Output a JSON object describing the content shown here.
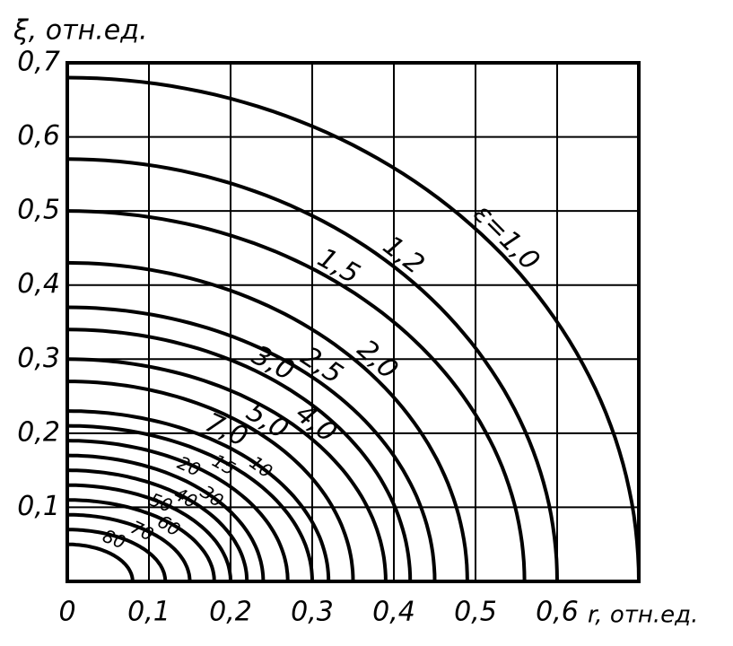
{
  "chart_data": {
    "type": "contour",
    "ylabel": "ξ, отн.ед.",
    "xlabel": "r, отн.ед.",
    "xlim": [
      0,
      0.7
    ],
    "ylim": [
      0,
      0.7
    ],
    "xticks": [
      {
        "value": 0,
        "label": "0"
      },
      {
        "value": 0.1,
        "label": "0,1"
      },
      {
        "value": 0.2,
        "label": "0,2"
      },
      {
        "value": 0.3,
        "label": "0,3"
      },
      {
        "value": 0.4,
        "label": "0,4"
      },
      {
        "value": 0.5,
        "label": "0,5"
      },
      {
        "value": 0.6,
        "label": "0,6"
      }
    ],
    "yticks": [
      {
        "value": 0.1,
        "label": "0,1"
      },
      {
        "value": 0.2,
        "label": "0,2"
      },
      {
        "value": 0.3,
        "label": "0,3"
      },
      {
        "value": 0.4,
        "label": "0,4"
      },
      {
        "value": 0.5,
        "label": "0,5"
      },
      {
        "value": 0.6,
        "label": "0,6"
      },
      {
        "value": 0.7,
        "label": "0,7"
      }
    ],
    "grid": true,
    "color": "#000000",
    "series": [
      {
        "name": "ε=1,0",
        "y0": 0.68,
        "x0": 0.7
      },
      {
        "name": "1,2",
        "y0": 0.57,
        "x0": 0.6
      },
      {
        "name": "1,5",
        "y0": 0.5,
        "x0": 0.56
      },
      {
        "name": "2,0",
        "y0": 0.43,
        "x0": 0.49
      },
      {
        "name": "2,5",
        "y0": 0.37,
        "x0": 0.45
      },
      {
        "name": "3,0",
        "y0": 0.34,
        "x0": 0.42
      },
      {
        "name": "4,0",
        "y0": 0.3,
        "x0": 0.39
      },
      {
        "name": "5,0",
        "y0": 0.27,
        "x0": 0.35
      },
      {
        "name": "7,0",
        "y0": 0.23,
        "x0": 0.32
      },
      {
        "name": "10",
        "y0": 0.21,
        "x0": 0.3
      },
      {
        "name": "15",
        "y0": 0.19,
        "x0": 0.27
      },
      {
        "name": "20",
        "y0": 0.17,
        "x0": 0.24
      },
      {
        "name": "30",
        "y0": 0.15,
        "x0": 0.22
      },
      {
        "name": "40",
        "y0": 0.13,
        "x0": 0.2
      },
      {
        "name": "50",
        "y0": 0.11,
        "x0": 0.18
      },
      {
        "name": "60",
        "y0": 0.09,
        "x0": 0.15
      },
      {
        "name": "70",
        "y0": 0.07,
        "x0": 0.12
      },
      {
        "name": "80",
        "y0": 0.05,
        "x0": 0.08
      }
    ]
  }
}
